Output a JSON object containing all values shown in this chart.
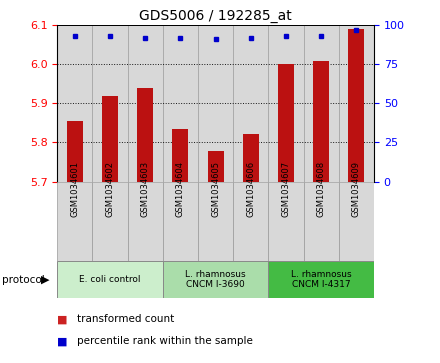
{
  "title": "GDS5006 / 192285_at",
  "categories": [
    "GSM1034601",
    "GSM1034602",
    "GSM1034603",
    "GSM1034604",
    "GSM1034605",
    "GSM1034606",
    "GSM1034607",
    "GSM1034608",
    "GSM1034609"
  ],
  "bar_values": [
    5.855,
    5.92,
    5.94,
    5.835,
    5.778,
    5.822,
    6.0,
    6.01,
    6.09
  ],
  "percentile_values": [
    93,
    93,
    92,
    92,
    91,
    92,
    93,
    93,
    97
  ],
  "ylim_left": [
    5.7,
    6.1
  ],
  "ylim_right": [
    0,
    100
  ],
  "yticks_left": [
    5.7,
    5.8,
    5.9,
    6.0,
    6.1
  ],
  "yticks_right": [
    0,
    25,
    50,
    75,
    100
  ],
  "bar_color": "#bb1111",
  "dot_color": "#0000cc",
  "plot_bg_color": "#ffffff",
  "protocol_groups": [
    {
      "label": "E. coli control",
      "start": 0,
      "end": 3,
      "color": "#cceecc"
    },
    {
      "label": "L. rhamnosus\nCNCM I-3690",
      "start": 3,
      "end": 6,
      "color": "#aaddaa"
    },
    {
      "label": "L. rhamnosus\nCNCM I-4317",
      "start": 6,
      "end": 9,
      "color": "#44bb44"
    }
  ],
  "col_bg_color": "#d8d8d8",
  "col_border_color": "#999999",
  "legend_bar_color": "#cc2222",
  "legend_dot_color": "#0000cc"
}
